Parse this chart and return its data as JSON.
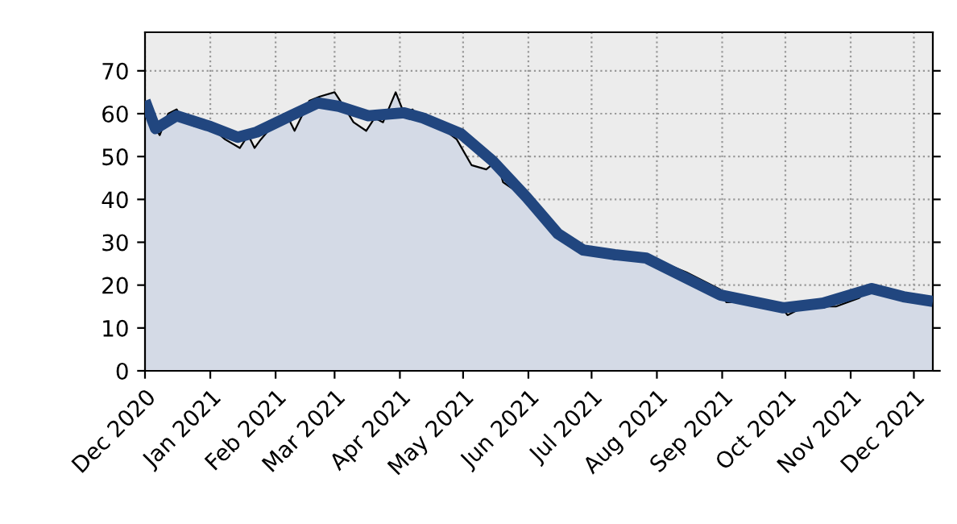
{
  "chart_data": {
    "type": "line",
    "xlim": [
      "2020-12-01",
      "2021-12-10"
    ],
    "xticks": [
      {
        "value": "2020-12-01",
        "label": "Dec 2020"
      },
      {
        "value": "2021-01-01",
        "label": "Jan 2021"
      },
      {
        "value": "2021-02-01",
        "label": "Feb 2021"
      },
      {
        "value": "2021-03-01",
        "label": "Mar 2021"
      },
      {
        "value": "2021-04-01",
        "label": "Apr 2021"
      },
      {
        "value": "2021-05-01",
        "label": "May 2021"
      },
      {
        "value": "2021-06-01",
        "label": "Jun 2021"
      },
      {
        "value": "2021-07-01",
        "label": "Jul 2021"
      },
      {
        "value": "2021-08-01",
        "label": "Aug 2021"
      },
      {
        "value": "2021-09-01",
        "label": "Sep 2021"
      },
      {
        "value": "2021-10-01",
        "label": "Oct 2021"
      },
      {
        "value": "2021-11-01",
        "label": "Nov 2021"
      },
      {
        "value": "2021-12-01",
        "label": "Dec 2021"
      }
    ],
    "ylim": [
      0,
      79
    ],
    "yticks": [
      0,
      10,
      20,
      30,
      40,
      50,
      60,
      70
    ],
    "grid": true,
    "series": [
      {
        "type": "area",
        "color": "#d4dae6",
        "x": [
          "2020-12-01",
          "2020-12-04",
          "2020-12-08",
          "2020-12-12",
          "2020-12-16",
          "2020-12-20",
          "2020-12-25",
          "2021-01-01",
          "2021-01-08",
          "2021-01-15",
          "2021-01-19",
          "2021-01-22",
          "2021-01-25",
          "2021-02-01",
          "2021-02-06",
          "2021-02-10",
          "2021-02-17",
          "2021-02-22",
          "2021-03-01",
          "2021-03-05",
          "2021-03-10",
          "2021-03-16",
          "2021-03-20",
          "2021-03-24",
          "2021-03-30",
          "2021-04-03",
          "2021-04-07",
          "2021-04-12",
          "2021-04-20",
          "2021-04-28",
          "2021-05-05",
          "2021-05-12",
          "2021-05-17",
          "2021-05-20",
          "2021-05-26",
          "2021-06-01",
          "2021-06-10",
          "2021-06-18",
          "2021-06-24",
          "2021-06-30",
          "2021-07-05",
          "2021-07-12",
          "2021-07-20",
          "2021-07-26",
          "2021-08-05",
          "2021-08-15",
          "2021-08-31",
          "2021-09-03",
          "2021-09-15",
          "2021-09-29",
          "2021-10-02",
          "2021-10-10",
          "2021-10-25",
          "2021-11-05",
          "2021-11-12",
          "2021-11-18",
          "2021-11-28",
          "2021-12-10"
        ],
        "values": [
          63,
          58,
          55,
          60,
          61,
          58,
          57,
          57,
          54,
          52,
          55,
          52,
          54,
          58,
          60,
          56,
          63,
          64,
          65,
          62,
          58,
          56,
          59,
          58,
          65,
          60,
          61,
          58,
          57,
          54,
          48,
          47,
          49,
          44,
          42,
          40,
          34,
          30,
          30,
          28,
          27,
          26,
          27,
          26,
          25,
          23,
          19,
          16,
          16,
          15,
          13,
          15,
          15,
          17,
          20,
          18,
          17,
          16
        ]
      },
      {
        "color": "#21467f",
        "x": [
          "2020-12-01",
          "2020-12-06",
          "2020-12-16",
          "2021-01-01",
          "2021-01-14",
          "2021-01-23",
          "2021-02-08",
          "2021-02-21",
          "2021-03-03",
          "2021-03-17",
          "2021-04-03",
          "2021-04-12",
          "2021-04-30",
          "2021-05-15",
          "2021-05-31",
          "2021-06-15",
          "2021-06-27",
          "2021-07-12",
          "2021-07-27",
          "2021-08-11",
          "2021-08-31",
          "2021-09-15",
          "2021-09-30",
          "2021-10-19",
          "2021-11-11",
          "2021-11-26",
          "2021-12-10"
        ],
        "values": [
          63,
          56.5,
          59.5,
          57,
          54.5,
          55.7,
          59.5,
          62.5,
          61.7,
          59.5,
          60.2,
          59,
          55.3,
          49,
          40.6,
          32,
          28.2,
          27.1,
          26.3,
          22.6,
          17.7,
          16.2,
          14.7,
          15.8,
          19.2,
          17.3,
          16.2
        ]
      }
    ]
  }
}
